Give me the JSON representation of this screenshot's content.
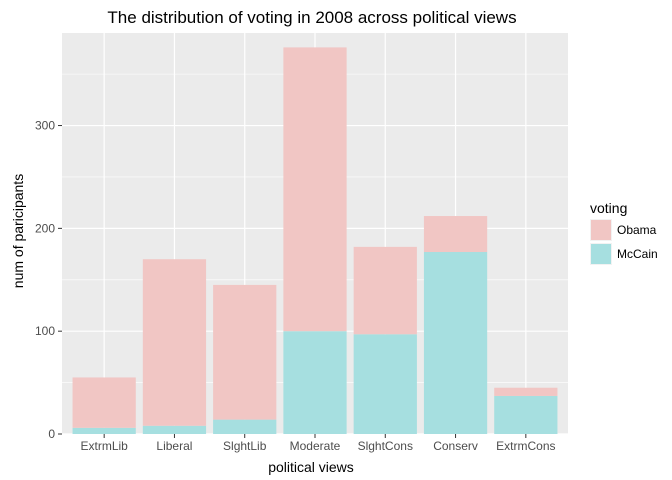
{
  "chart_data": {
    "type": "bar",
    "stacked": true,
    "title": "The distribution of voting in 2008 across political views",
    "xlabel": "political views",
    "ylabel": "num of paricipants",
    "categories": [
      "ExtrmLib",
      "Liberal",
      "SlghtLib",
      "Moderate",
      "SlghtCons",
      "Conserv",
      "ExtrmCons"
    ],
    "series": [
      {
        "name": "McCain",
        "values": [
          6,
          8,
          14,
          100,
          97,
          177,
          37
        ],
        "color": "#a6dfe0"
      },
      {
        "name": "Obama",
        "values": [
          49,
          162,
          131,
          276,
          85,
          35,
          8
        ],
        "color": "#f1c6c4"
      }
    ],
    "ylim": [
      0,
      390
    ],
    "yticks": [
      0,
      100,
      200,
      300
    ],
    "grid": true,
    "legend": {
      "title": "voting",
      "position": "right",
      "entries": [
        {
          "label": "Obama",
          "color": "#f1c6c4"
        },
        {
          "label": "McCain",
          "color": "#a6dfe0"
        }
      ]
    },
    "panel_color": "#ebebeb",
    "grid_color": "#ffffff"
  }
}
